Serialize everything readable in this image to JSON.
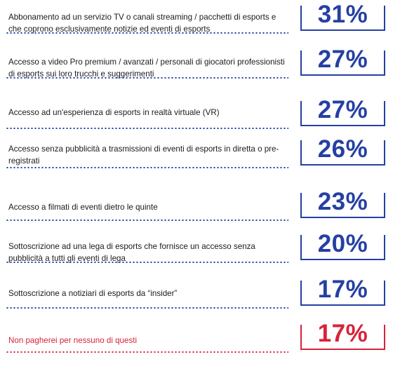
{
  "chart_data": {
    "type": "bar",
    "categories": [
      "Abbonamento ad un servizio TV o canali streaming / pacchetti di esports e che coprono esclusivamente notizie ed eventi di esports",
      "Accesso a video Pro premium / avanzati / personali di giocatori professionisti di esports sui loro trucchi e suggerimenti",
      "Accesso ad un'esperienza di esports in realtà virtuale (VR)",
      "Accesso senza pubblicità a trasmissioni di eventi di esports in diretta o pre-registrati",
      "Accesso a filmati di eventi dietro le quinte",
      "Sottoscrizione ad una lega di esports che fornisce un accesso senza pubblicità a tutti gli eventi di lega",
      "Sottoscrizione a notiziari di esports da “insider”",
      "Non pagherei per nessuno di questi"
    ],
    "values": [
      31,
      27,
      27,
      26,
      23,
      20,
      17,
      17
    ],
    "display_values": [
      "31%",
      "27%",
      "27%",
      "26%",
      "23%",
      "20%",
      "17%",
      "17%"
    ],
    "colors": {
      "primary": "#2540a3",
      "highlight": "#d6243a"
    },
    "highlight_index": 7
  }
}
